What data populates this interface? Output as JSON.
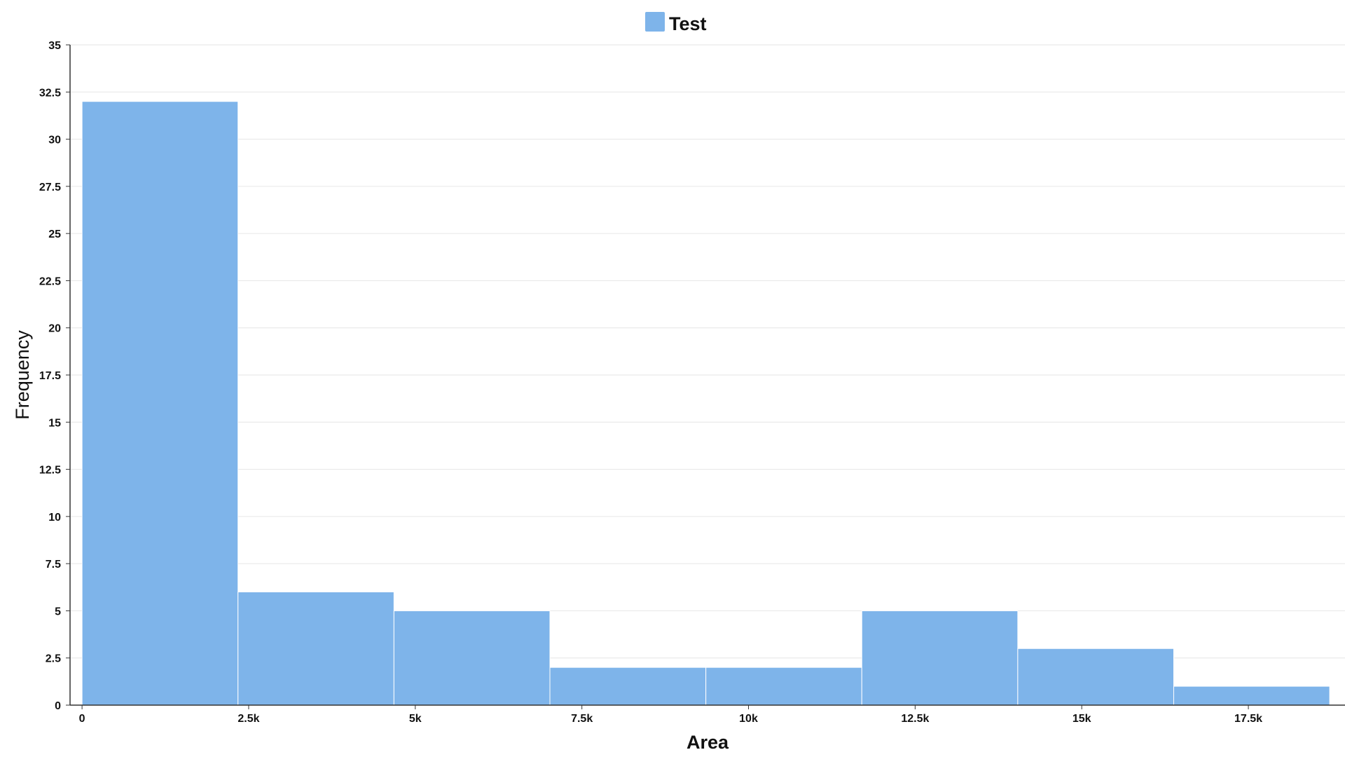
{
  "chart_data": {
    "type": "bar",
    "title": "",
    "legend": {
      "position": "top-center",
      "entries": [
        "Test"
      ]
    },
    "series": [
      {
        "name": "Test",
        "color": "#7eb4ea",
        "bins": [
          {
            "x0": 0,
            "x1": 2340,
            "value": 32
          },
          {
            "x0": 2340,
            "x1": 4680,
            "value": 6
          },
          {
            "x0": 4680,
            "x1": 7020,
            "value": 5
          },
          {
            "x0": 7020,
            "x1": 9360,
            "value": 2
          },
          {
            "x0": 9360,
            "x1": 11700,
            "value": 2
          },
          {
            "x0": 11700,
            "x1": 14040,
            "value": 5
          },
          {
            "x0": 14040,
            "x1": 16380,
            "value": 3
          },
          {
            "x0": 16380,
            "x1": 18720,
            "value": 1
          }
        ]
      }
    ],
    "xlabel": "Area",
    "ylabel": "Frequency",
    "xlim": [
      -180,
      18950
    ],
    "ylim": [
      0,
      35
    ],
    "xticks": [
      {
        "value": 0,
        "label": "0"
      },
      {
        "value": 2500,
        "label": "2.5k"
      },
      {
        "value": 5000,
        "label": "5k"
      },
      {
        "value": 7500,
        "label": "7.5k"
      },
      {
        "value": 10000,
        "label": "10k"
      },
      {
        "value": 12500,
        "label": "12.5k"
      },
      {
        "value": 15000,
        "label": "15k"
      },
      {
        "value": 17500,
        "label": "17.5k"
      }
    ],
    "yticks": [
      {
        "value": 0,
        "label": "0"
      },
      {
        "value": 2.5,
        "label": "2.5"
      },
      {
        "value": 5,
        "label": "5"
      },
      {
        "value": 7.5,
        "label": "7.5"
      },
      {
        "value": 10,
        "label": "10"
      },
      {
        "value": 12.5,
        "label": "12.5"
      },
      {
        "value": 15,
        "label": "15"
      },
      {
        "value": 17.5,
        "label": "17.5"
      },
      {
        "value": 20,
        "label": "20"
      },
      {
        "value": 22.5,
        "label": "22.5"
      },
      {
        "value": 25,
        "label": "25"
      },
      {
        "value": 27.5,
        "label": "27.5"
      },
      {
        "value": 30,
        "label": "30"
      },
      {
        "value": 32.5,
        "label": "32.5"
      },
      {
        "value": 35,
        "label": "35"
      }
    ],
    "grid": {
      "horizontal": true,
      "vertical": false,
      "color": "#e6e6e6"
    },
    "axis_color": "#333333"
  }
}
